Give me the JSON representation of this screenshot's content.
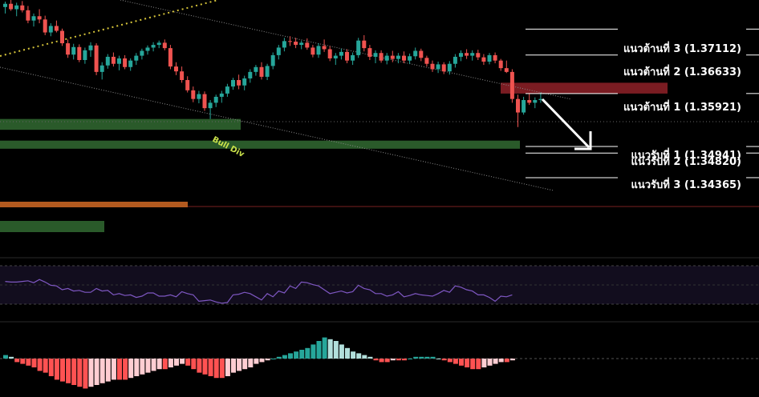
{
  "chart_data": {
    "type": "candlestick",
    "title": "",
    "price_range": [
      1.3395,
      1.3765
    ],
    "candles": [
      [
        1.3752,
        1.3762,
        1.374,
        1.3758
      ],
      [
        1.3758,
        1.3765,
        1.3745,
        1.3748
      ],
      [
        1.3748,
        1.376,
        1.3735,
        1.3755
      ],
      [
        1.3755,
        1.3763,
        1.3742,
        1.3746
      ],
      [
        1.3746,
        1.3754,
        1.3722,
        1.3727
      ],
      [
        1.3727,
        1.374,
        1.3716,
        1.3735
      ],
      [
        1.3735,
        1.3748,
        1.3722,
        1.3729
      ],
      [
        1.3729,
        1.3736,
        1.37,
        1.3705
      ],
      [
        1.3705,
        1.3722,
        1.3698,
        1.3717
      ],
      [
        1.3717,
        1.3727,
        1.3705,
        1.3708
      ],
      [
        1.3708,
        1.3712,
        1.368,
        1.3685
      ],
      [
        1.3685,
        1.3692,
        1.3658,
        1.3664
      ],
      [
        1.3664,
        1.3684,
        1.3655,
        1.3678
      ],
      [
        1.3678,
        1.3683,
        1.365,
        1.3654
      ],
      [
        1.3654,
        1.3677,
        1.3647,
        1.3672
      ],
      [
        1.3672,
        1.3687,
        1.366,
        1.3681
      ],
      [
        1.3681,
        1.3685,
        1.3626,
        1.3632
      ],
      [
        1.3632,
        1.365,
        1.3618,
        1.3644
      ],
      [
        1.3644,
        1.3665,
        1.3638,
        1.366
      ],
      [
        1.366,
        1.3668,
        1.3642,
        1.3647
      ],
      [
        1.3647,
        1.3662,
        1.3635,
        1.3657
      ],
      [
        1.3657,
        1.3663,
        1.3637,
        1.3641
      ],
      [
        1.3641,
        1.3657,
        1.3634,
        1.3653
      ],
      [
        1.3653,
        1.3667,
        1.3645,
        1.3662
      ],
      [
        1.3662,
        1.3675,
        1.3655,
        1.3671
      ],
      [
        1.3671,
        1.3681,
        1.3664,
        1.3677
      ],
      [
        1.3677,
        1.3687,
        1.367,
        1.3682
      ],
      [
        1.3682,
        1.369,
        1.3676,
        1.3686
      ],
      [
        1.3686,
        1.3692,
        1.3672,
        1.3676
      ],
      [
        1.3676,
        1.3682,
        1.3637,
        1.3642
      ],
      [
        1.3642,
        1.365,
        1.3626,
        1.3633
      ],
      [
        1.3633,
        1.3642,
        1.3612,
        1.3617
      ],
      [
        1.3617,
        1.3624,
        1.3594,
        1.3598
      ],
      [
        1.3598,
        1.3605,
        1.3576,
        1.3582
      ],
      [
        1.3582,
        1.3597,
        1.3574,
        1.3591
      ],
      [
        1.3591,
        1.3596,
        1.356,
        1.3565
      ],
      [
        1.3565,
        1.358,
        1.3545,
        1.3575
      ],
      [
        1.3575,
        1.359,
        1.3567,
        1.3586
      ],
      [
        1.3586,
        1.3597,
        1.3575,
        1.3592
      ],
      [
        1.3592,
        1.361,
        1.3586,
        1.3605
      ],
      [
        1.3605,
        1.3621,
        1.3599,
        1.3617
      ],
      [
        1.3617,
        1.3627,
        1.36,
        1.3607
      ],
      [
        1.3607,
        1.3625,
        1.3598,
        1.362
      ],
      [
        1.362,
        1.3637,
        1.3612,
        1.3632
      ],
      [
        1.3632,
        1.3645,
        1.3625,
        1.3641
      ],
      [
        1.3641,
        1.365,
        1.3618,
        1.3623
      ],
      [
        1.3623,
        1.3647,
        1.3617,
        1.3643
      ],
      [
        1.3643,
        1.3668,
        1.3637,
        1.3663
      ],
      [
        1.3663,
        1.3682,
        1.3655,
        1.3677
      ],
      [
        1.3677,
        1.3695,
        1.367,
        1.3689
      ],
      [
        1.3689,
        1.3698,
        1.368,
        1.3688
      ],
      [
        1.3688,
        1.3695,
        1.3676,
        1.3682
      ],
      [
        1.3682,
        1.369,
        1.3674,
        1.3686
      ],
      [
        1.3686,
        1.3694,
        1.3673,
        1.3677
      ],
      [
        1.3677,
        1.3682,
        1.3659,
        1.3664
      ],
      [
        1.3664,
        1.3685,
        1.3658,
        1.368
      ],
      [
        1.368,
        1.3692,
        1.3669,
        1.3674
      ],
      [
        1.3674,
        1.368,
        1.3652,
        1.3657
      ],
      [
        1.3657,
        1.3667,
        1.3645,
        1.3662
      ],
      [
        1.3662,
        1.3675,
        1.3655,
        1.3669
      ],
      [
        1.3669,
        1.3674,
        1.3648,
        1.3653
      ],
      [
        1.3653,
        1.3668,
        1.3645,
        1.3663
      ],
      [
        1.3663,
        1.3695,
        1.3658,
        1.369
      ],
      [
        1.369,
        1.37,
        1.367,
        1.3676
      ],
      [
        1.3676,
        1.3682,
        1.3654,
        1.366
      ],
      [
        1.366,
        1.3672,
        1.3648,
        1.3667
      ],
      [
        1.3667,
        1.3672,
        1.3649,
        1.3653
      ],
      [
        1.3653,
        1.3667,
        1.3646,
        1.3662
      ],
      [
        1.3662,
        1.3671,
        1.365,
        1.3656
      ],
      [
        1.3656,
        1.3667,
        1.3648,
        1.3662
      ],
      [
        1.3662,
        1.367,
        1.3648,
        1.3653
      ],
      [
        1.3653,
        1.3666,
        1.3647,
        1.3661
      ],
      [
        1.3661,
        1.3677,
        1.3655,
        1.3671
      ],
      [
        1.3671,
        1.3675,
        1.3652,
        1.3658
      ],
      [
        1.3658,
        1.3662,
        1.3642,
        1.3647
      ],
      [
        1.3647,
        1.3653,
        1.3632,
        1.3637
      ],
      [
        1.3637,
        1.3651,
        1.363,
        1.3646
      ],
      [
        1.3646,
        1.365,
        1.3628,
        1.3633
      ],
      [
        1.3633,
        1.3652,
        1.3627,
        1.3647
      ],
      [
        1.3647,
        1.3665,
        1.364,
        1.366
      ],
      [
        1.366,
        1.3672,
        1.3652,
        1.3667
      ],
      [
        1.3667,
        1.3674,
        1.3656,
        1.3662
      ],
      [
        1.3662,
        1.3672,
        1.3653,
        1.3667
      ],
      [
        1.3667,
        1.3673,
        1.3654,
        1.3659
      ],
      [
        1.3659,
        1.3665,
        1.3645,
        1.3651
      ],
      [
        1.3651,
        1.3667,
        1.3646,
        1.3663
      ],
      [
        1.3663,
        1.3668,
        1.3648,
        1.3653
      ],
      [
        1.3653,
        1.3656,
        1.3634,
        1.3639
      ],
      [
        1.3639,
        1.3653,
        1.363,
        1.3632
      ],
      [
        1.3632,
        1.3637,
        1.3575,
        1.3582
      ],
      [
        1.3582,
        1.359,
        1.353,
        1.3557
      ],
      [
        1.3557,
        1.3586,
        1.3553,
        1.358
      ],
      [
        1.358,
        1.3592,
        1.3571,
        1.3575
      ],
      [
        1.3575,
        1.3585,
        1.3565,
        1.358
      ],
      [
        1.358,
        1.3594,
        1.3575,
        1.3582
      ]
    ],
    "levels": [
      {
        "label": "แนวต้านที่ 3 (1.37112)",
        "price": 1.37112,
        "color": "#ffffff"
      },
      {
        "label": "แนวต้านที่ 2 (1.36633)",
        "price": 1.36633,
        "color": "#ffffff"
      },
      {
        "label": "แนวต้านที่ 1 (1.35921)",
        "price": 1.35921,
        "color": "#ffffff"
      },
      {
        "label": "แนวรับที่ 1 (1.34941)",
        "price": 1.34941,
        "color": "#ffffff"
      },
      {
        "label": "แนวรับที่ 2 (1.34820)",
        "price": 1.3482,
        "color": "#ffffff"
      },
      {
        "label": "แนวรับที่ 3 (1.34365)",
        "price": 1.34365,
        "color": "#ffffff"
      }
    ],
    "annotation": {
      "text": "Bull Div",
      "color": "#c8e04a"
    },
    "supply_zone": {
      "price_range": [
        1.3592,
        1.3612
      ],
      "color": "#7a1c22"
    },
    "demand_zones": [
      {
        "price_range": [
          1.3525,
          1.3545
        ],
        "color": "#2a5a2a"
      },
      {
        "price_range": [
          1.349,
          1.3505
        ],
        "color": "#2a5a2a"
      }
    ],
    "colors": {
      "up": "#26a69a",
      "down": "#ef5350",
      "channel": "#9a9a9a",
      "trend": "#d7c53a"
    },
    "rsi": {
      "range": [
        0,
        100
      ],
      "bands": [
        70,
        30
      ],
      "color": "#7e57c2",
      "values": [
        63,
        62,
        62,
        63,
        64,
        61,
        66,
        62,
        57,
        56,
        50,
        52,
        48,
        49,
        46,
        46,
        52,
        48,
        49,
        42,
        44,
        41,
        42,
        38,
        40,
        45,
        45,
        40,
        40,
        42,
        39,
        47,
        44,
        42,
        32,
        33,
        34,
        31,
        29,
        30,
        42,
        43,
        46,
        44,
        39,
        34,
        44,
        39,
        48,
        45,
        56,
        52,
        62,
        61,
        58,
        56,
        50,
        44,
        46,
        48,
        45,
        47,
        57,
        52,
        50,
        44,
        44,
        40,
        42,
        47,
        39,
        41,
        44,
        42,
        41,
        40,
        44,
        49,
        46,
        56,
        54,
        50,
        48,
        42,
        42,
        38,
        32,
        40,
        39,
        42
      ]
    },
    "macd": {
      "hist": [
        2,
        1,
        -2,
        -3,
        -4,
        -5,
        -7,
        -8,
        -10,
        -12,
        -13,
        -14,
        -15,
        -16,
        -17,
        -16,
        -15,
        -14,
        -13,
        -12,
        -12,
        -12,
        -11,
        -10,
        -9,
        -8,
        -7,
        -6,
        -6,
        -5,
        -4,
        -3,
        -4,
        -6,
        -8,
        -9,
        -10,
        -11,
        -11,
        -10,
        -8,
        -7,
        -6,
        -5,
        -3,
        -2,
        -1,
        0,
        1,
        2,
        3,
        4,
        5,
        6,
        8,
        10,
        12,
        11,
        10,
        8,
        6,
        4,
        3,
        2,
        1,
        -1,
        -2,
        -2,
        -1,
        -1,
        -1,
        0,
        1,
        1,
        1,
        1,
        0,
        -1,
        -2,
        -3,
        -4,
        -5,
        -6,
        -6,
        -5,
        -4,
        -3,
        -2,
        -2,
        -1
      ],
      "colors": {
        "pos_strong": "#26a69a",
        "pos_weak": "#b2dfdb",
        "neg_strong": "#ff5252",
        "neg_weak": "#ffcdd2"
      }
    }
  }
}
